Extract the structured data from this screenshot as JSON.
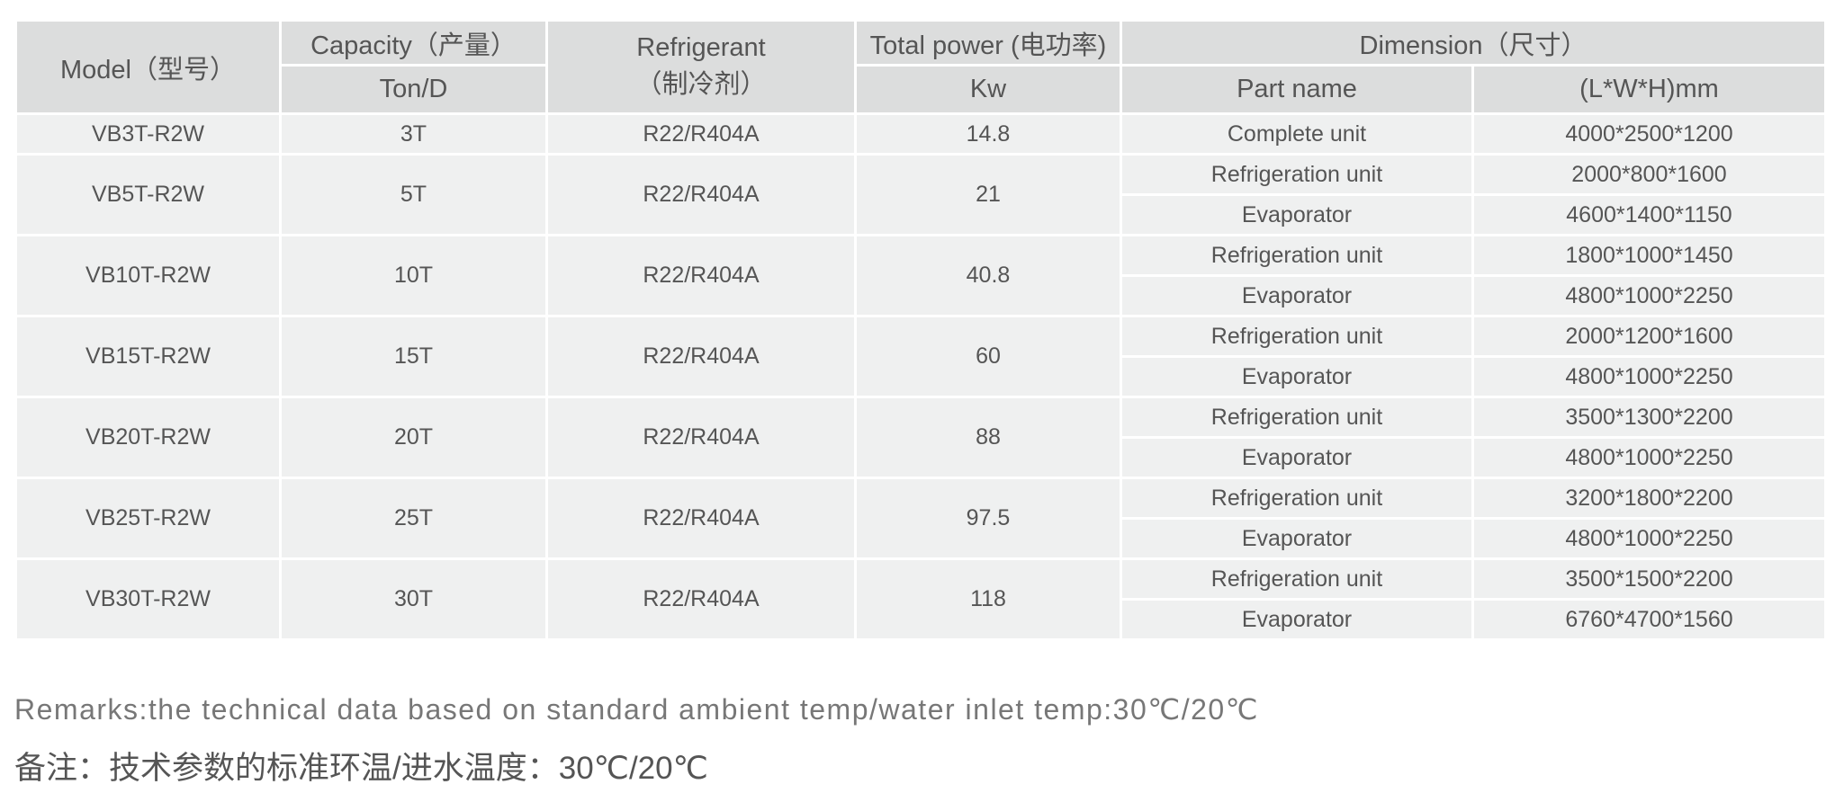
{
  "header": {
    "model": "Model（型号）",
    "capacity": "Capacity（产量）",
    "capacity_unit": "Ton/D",
    "refrigerant": "Refrigerant",
    "refrigerant_cn": "（制冷剂）",
    "power": "Total power (电功率)",
    "power_unit": "Kw",
    "dimension": "Dimension（尺寸）",
    "part_name": "Part name",
    "size_unit": "(L*W*H)mm"
  },
  "rows": [
    {
      "model": "VB3T-R2W",
      "capacity": "3T",
      "refrigerant": "R22/R404A",
      "power": "14.8",
      "parts": [
        {
          "name": "Complete unit",
          "size": "4000*2500*1200"
        }
      ]
    },
    {
      "model": "VB5T-R2W",
      "capacity": "5T",
      "refrigerant": "R22/R404A",
      "power": "21",
      "parts": [
        {
          "name": "Refrigeration unit",
          "size": "2000*800*1600"
        },
        {
          "name": "Evaporator",
          "size": "4600*1400*1150"
        }
      ]
    },
    {
      "model": "VB10T-R2W",
      "capacity": "10T",
      "refrigerant": "R22/R404A",
      "power": "40.8",
      "parts": [
        {
          "name": "Refrigeration unit",
          "size": "1800*1000*1450"
        },
        {
          "name": "Evaporator",
          "size": "4800*1000*2250"
        }
      ]
    },
    {
      "model": "VB15T-R2W",
      "capacity": "15T",
      "refrigerant": "R22/R404A",
      "power": "60",
      "parts": [
        {
          "name": "Refrigeration unit",
          "size": "2000*1200*1600"
        },
        {
          "name": "Evaporator",
          "size": "4800*1000*2250"
        }
      ]
    },
    {
      "model": "VB20T-R2W",
      "capacity": "20T",
      "refrigerant": "R22/R404A",
      "power": "88",
      "parts": [
        {
          "name": "Refrigeration unit",
          "size": "3500*1300*2200"
        },
        {
          "name": "Evaporator",
          "size": "4800*1000*2250"
        }
      ]
    },
    {
      "model": "VB25T-R2W",
      "capacity": "25T",
      "refrigerant": "R22/R404A",
      "power": "97.5",
      "parts": [
        {
          "name": "Refrigeration unit",
          "size": "3200*1800*2200"
        },
        {
          "name": "Evaporator",
          "size": "4800*1000*2250"
        }
      ]
    },
    {
      "model": "VB30T-R2W",
      "capacity": "30T",
      "refrigerant": "R22/R404A",
      "power": "118",
      "parts": [
        {
          "name": "Refrigeration unit",
          "size": "3500*1500*2200"
        },
        {
          "name": "Evaporator",
          "size": "6760*4700*1560"
        }
      ]
    }
  ],
  "remarks": {
    "en": "Remarks:the technical data based on standard ambient temp/water inlet temp:30℃/20℃",
    "cn": "备注：技术参数的标准环温/进水温度：30℃/20℃"
  }
}
